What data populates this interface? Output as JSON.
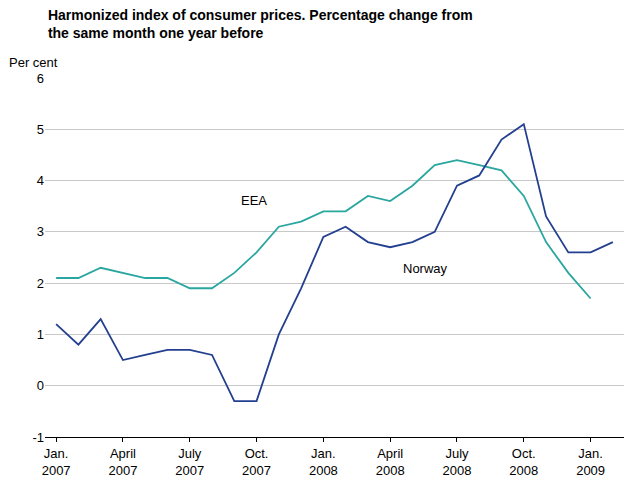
{
  "chart_data": {
    "type": "line",
    "title": "Harmonized index of consumer prices. Percentage change from\nthe same month one year before",
    "y_label": "Per cent",
    "categories": [
      "Jan.\n2007",
      null,
      null,
      "April\n2007",
      null,
      null,
      "July\n2007",
      null,
      null,
      "Oct.\n2007",
      null,
      null,
      "Jan.\n2008",
      null,
      null,
      "April\n2008",
      null,
      null,
      "July\n2008",
      null,
      null,
      "Oct.\n2008",
      null,
      null,
      "Jan.\n2009",
      null
    ],
    "series": [
      {
        "name": "EEA",
        "color": "#2aa6a0",
        "values": [
          2.1,
          2.1,
          2.3,
          2.2,
          2.1,
          2.1,
          1.9,
          1.9,
          2.2,
          2.6,
          3.1,
          3.2,
          3.4,
          3.4,
          3.7,
          3.6,
          3.9,
          4.3,
          4.4,
          4.3,
          4.2,
          3.7,
          2.8,
          2.2,
          1.7,
          null
        ]
      },
      {
        "name": "Norway",
        "color": "#233f8f",
        "values": [
          1.2,
          0.8,
          1.3,
          0.5,
          0.6,
          0.7,
          0.7,
          0.6,
          -0.3,
          -0.3,
          1.0,
          1.9,
          2.9,
          3.1,
          2.8,
          2.7,
          2.8,
          3.0,
          3.9,
          4.1,
          4.8,
          5.1,
          3.3,
          2.6,
          2.6,
          2.8
        ]
      }
    ],
    "ylim": [
      -1,
      6
    ],
    "yticks": [
      -1,
      0,
      1,
      2,
      3,
      4,
      5,
      6
    ],
    "grid": true
  }
}
